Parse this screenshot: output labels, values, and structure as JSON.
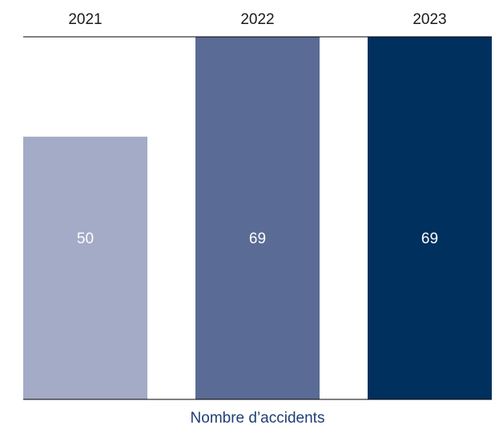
{
  "chart_data": {
    "type": "bar",
    "categories": [
      "2021",
      "2022",
      "2023"
    ],
    "values": [
      50,
      69,
      69
    ],
    "xlabel": "Nombre d’accidents",
    "ylabel": "",
    "ylim": [
      0,
      69
    ],
    "grid": false,
    "legend": "none",
    "colors": [
      "#a3abc6",
      "#5a6b95",
      "#00305e"
    ],
    "axis_title_color": "#1f3f73",
    "axis_line_color": "#000000"
  }
}
